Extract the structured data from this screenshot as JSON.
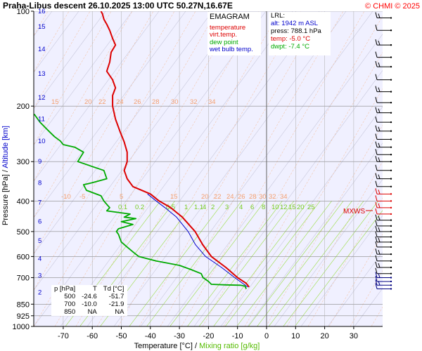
{
  "header": {
    "title": "Praha-Libus   descent   26.10.2025 13:00 UTC  50.27N,16.67E",
    "copyright": "© CHMI © 2025",
    "color_title": "#000000",
    "color_copyright": "#ff0000"
  },
  "legend": {
    "heading": "EMAGRAM",
    "items": [
      {
        "label": "temperature",
        "color": "#dd0000"
      },
      {
        "label": "virt.temp.",
        "color": "#dd0000"
      },
      {
        "label": "dew point",
        "color": "#00aa00"
      },
      {
        "label": "wet bulb temp.",
        "color": "#0000cc"
      }
    ]
  },
  "lrl": {
    "heading": "LRL:",
    "alt": "alt: 1942 m ASL",
    "press": "press: 788.1 hPa",
    "temp": "temp: -5.0 °C",
    "dwpt": "dwpt: -7.4 °C"
  },
  "level_table": {
    "headers": [
      "p [hPa]",
      "T",
      "Td [°C]"
    ],
    "rows": [
      [
        "500",
        "-24.6",
        "-51.7"
      ],
      [
        "700",
        "-10.0",
        "-21.9"
      ],
      [
        "850",
        "NA",
        "NA"
      ]
    ]
  },
  "chart_data": {
    "type": "line",
    "x_axis": {
      "label": "Temperature [°C]",
      "label_sep": "/",
      "label2": "Mixing ratio [g/kg]",
      "ticks": [
        -70,
        -60,
        -50,
        -40,
        -30,
        -20,
        -10,
        0,
        10,
        20,
        30
      ],
      "range": [
        -80,
        40
      ]
    },
    "y_axis": {
      "label": "Pressure [hPa]",
      "label_sep": "/",
      "label2": "Altitude [km]",
      "scale": "log",
      "ticks": [
        100,
        200,
        300,
        400,
        500,
        600,
        700,
        850,
        925,
        1000
      ],
      "range": [
        1000,
        100
      ],
      "altitude_ticks_km": [
        2,
        3,
        4,
        5,
        6,
        7,
        8,
        9,
        10,
        11,
        12,
        13,
        14,
        15,
        16
      ]
    },
    "grid": true,
    "mixing_ratio_labels": [
      "0.1",
      "0.2",
      "0.5",
      "1",
      "1.1",
      "4",
      "2",
      "3",
      "4",
      "6",
      "8",
      "10",
      "12",
      "15",
      "20",
      "25"
    ],
    "isotherm_labels_upper": [
      "15",
      "20",
      "22",
      "24",
      "26",
      "28",
      "30",
      "32",
      "34"
    ],
    "isotherm_labels_lower": [
      "-10",
      "-5",
      "5",
      "15",
      "20",
      "22",
      "24",
      "26",
      "28",
      "30",
      "32",
      "34"
    ],
    "mxws_label": "MXWS",
    "series": [
      {
        "name": "temperature",
        "color": "#dd0000",
        "points": [
          [
            750,
            -6
          ],
          [
            730,
            -7
          ],
          [
            700,
            -10
          ],
          [
            650,
            -14
          ],
          [
            600,
            -19
          ],
          [
            550,
            -22
          ],
          [
            500,
            -24.6
          ],
          [
            450,
            -29
          ],
          [
            420,
            -33
          ],
          [
            400,
            -37
          ],
          [
            380,
            -40
          ],
          [
            360,
            -46
          ],
          [
            340,
            -48
          ],
          [
            320,
            -49
          ],
          [
            300,
            -48
          ],
          [
            280,
            -48
          ],
          [
            260,
            -49
          ],
          [
            240,
            -50.5
          ],
          [
            220,
            -52
          ],
          [
            200,
            -53
          ],
          [
            185,
            -53
          ],
          [
            175,
            -52
          ],
          [
            165,
            -53
          ],
          [
            155,
            -55
          ],
          [
            145,
            -54
          ],
          [
            135,
            -53.5
          ],
          [
            128,
            -52
          ],
          [
            122,
            -53
          ],
          [
            115,
            -54
          ],
          [
            110,
            -55
          ],
          [
            106,
            -56
          ],
          [
            102,
            -56.5
          ],
          [
            100,
            -57
          ]
        ]
      },
      {
        "name": "wet bulb temp.",
        "color": "#0000cc",
        "points": [
          [
            750,
            -6.5
          ],
          [
            700,
            -11
          ],
          [
            650,
            -15.5
          ],
          [
            600,
            -21
          ],
          [
            550,
            -24.5
          ],
          [
            500,
            -27
          ],
          [
            450,
            -31
          ],
          [
            420,
            -35
          ],
          [
            400,
            -38
          ],
          [
            380,
            -41
          ]
        ]
      },
      {
        "name": "dew point",
        "color": "#00aa00",
        "points": [
          [
            760,
            -7
          ],
          [
            745,
            -7.4
          ],
          [
            740,
            -9
          ],
          [
            738,
            -14
          ],
          [
            735,
            -19
          ],
          [
            720,
            -20
          ],
          [
            700,
            -21.9
          ],
          [
            680,
            -22.5
          ],
          [
            660,
            -26
          ],
          [
            640,
            -30
          ],
          [
            620,
            -38
          ],
          [
            600,
            -44
          ],
          [
            580,
            -46
          ],
          [
            560,
            -48
          ],
          [
            540,
            -50
          ],
          [
            510,
            -51
          ],
          [
            500,
            -51.7
          ],
          [
            490,
            -51
          ],
          [
            475,
            -46
          ],
          [
            465,
            -50
          ],
          [
            455,
            -45
          ],
          [
            450,
            -49
          ],
          [
            440,
            -47
          ],
          [
            430,
            -55
          ],
          [
            420,
            -54
          ],
          [
            410,
            -55
          ],
          [
            400,
            -56
          ],
          [
            385,
            -57
          ],
          [
            370,
            -62
          ],
          [
            355,
            -63
          ],
          [
            350,
            -60
          ],
          [
            340,
            -55
          ],
          [
            320,
            -56
          ],
          [
            300,
            -65
          ],
          [
            280,
            -63
          ],
          [
            270,
            -66
          ],
          [
            265,
            -70
          ],
          [
            258,
            -71
          ],
          [
            250,
            -73
          ],
          [
            240,
            -75
          ],
          [
            225,
            -78
          ],
          [
            212,
            -80
          ]
        ]
      }
    ]
  }
}
